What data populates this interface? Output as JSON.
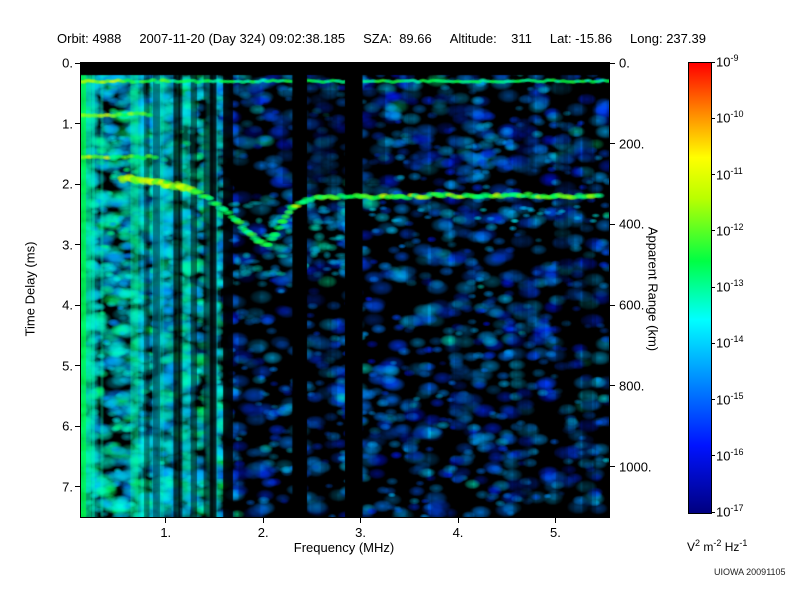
{
  "header": {
    "items": [
      "Orbit: 4988",
      "2007-11-20 (Day 324) 09:02:38.185",
      "SZA:  89.66",
      "Altitude:    311",
      "Lat: -15.86",
      "Long: 237.39"
    ]
  },
  "footer": {
    "credit": "UIOWA 20091105"
  },
  "chart_data": {
    "type": "heatmap",
    "xlabel": "Frequency (MHz)",
    "ylabel_left": "Time Delay (ms)",
    "ylabel_right": "Apparent Range (km)",
    "x_range": [
      0.13,
      5.55
    ],
    "x_ticks": [
      1,
      2,
      3,
      4,
      5
    ],
    "x_tick_labels": [
      "1.",
      "2.",
      "3.",
      "4.",
      "5."
    ],
    "y_left_range": [
      0,
      7.5
    ],
    "y_left_ticks": [
      0,
      1,
      2,
      3,
      4,
      5,
      6,
      7
    ],
    "y_left_tick_labels": [
      "0.",
      "1.",
      "2.",
      "3.",
      "4.",
      "5.",
      "6.",
      "7."
    ],
    "y_right_range": [
      0,
      1125
    ],
    "y_right_ticks": [
      0,
      200,
      400,
      600,
      800,
      1000
    ],
    "y_right_tick_labels": [
      "0.",
      "200.",
      "400.",
      "600.",
      "800.",
      "1000."
    ],
    "colorbar": {
      "scale": "log",
      "tick_exponents": [
        -9,
        -10,
        -11,
        -12,
        -13,
        -14,
        -15,
        -16,
        -17
      ],
      "unit_parts": [
        {
          "base": "V",
          "exp": "2"
        },
        {
          "base": "m",
          "exp": "-2"
        },
        {
          "base": "Hz",
          "exp": "-1"
        }
      ],
      "stops": [
        {
          "pos": 0.0,
          "color": "#000080"
        },
        {
          "pos": 0.15,
          "color": "#0013ff"
        },
        {
          "pos": 0.3,
          "color": "#0090ff"
        },
        {
          "pos": 0.43,
          "color": "#00ffff"
        },
        {
          "pos": 0.56,
          "color": "#00ff44"
        },
        {
          "pos": 0.7,
          "color": "#baff00"
        },
        {
          "pos": 0.79,
          "color": "#ffff00"
        },
        {
          "pos": 0.89,
          "color": "#ff8800"
        },
        {
          "pos": 1.0,
          "color": "#ff0000"
        }
      ]
    },
    "features": {
      "seed": 1337,
      "noise_blobs": 3200,
      "left_dense_max_freq": 1.6,
      "top_black_ms": 0.2,
      "surface_echo_ms": 0.3,
      "cyclotron_echoes": [
        {
          "ms": 0.85,
          "fmax": 0.85
        },
        {
          "ms": 1.55,
          "fmax": 0.95
        }
      ],
      "ionosphere_trace": [
        [
          0.55,
          1.9
        ],
        [
          0.7,
          1.92
        ],
        [
          0.85,
          1.95
        ],
        [
          1.0,
          2.0
        ],
        [
          1.15,
          2.05
        ],
        [
          1.3,
          2.12
        ],
        [
          1.45,
          2.25
        ],
        [
          1.6,
          2.42
        ],
        [
          1.72,
          2.6
        ],
        [
          1.85,
          2.8
        ],
        [
          1.95,
          2.95
        ],
        [
          2.05,
          3.0
        ],
        [
          2.12,
          2.85
        ],
        [
          2.2,
          2.6
        ],
        [
          2.3,
          2.4
        ],
        [
          2.42,
          2.28
        ],
        [
          2.6,
          2.22
        ],
        [
          3.0,
          2.2
        ],
        [
          3.4,
          2.22
        ],
        [
          3.8,
          2.18
        ],
        [
          4.2,
          2.2
        ],
        [
          4.6,
          2.18
        ],
        [
          5.0,
          2.2
        ],
        [
          5.45,
          2.2
        ]
      ],
      "second_echo": {
        "freq": [
          3.1,
          5.45
        ],
        "ms": 2.5
      },
      "diffuse_region": {
        "freq": [
          1.7,
          2.9
        ],
        "ms": [
          2.3,
          3.5
        ]
      },
      "blackout_columns": [
        [
          2.3,
          2.45
        ],
        [
          2.84,
          3.02
        ]
      ],
      "dark_columns_left": 10,
      "right_stripe_count": 26
    }
  }
}
